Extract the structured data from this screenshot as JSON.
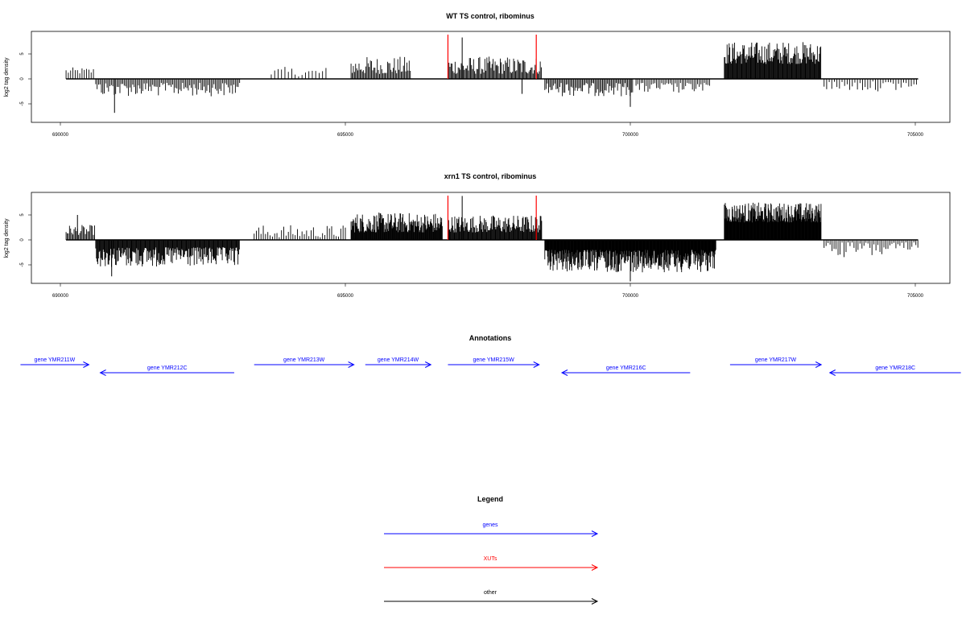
{
  "colors": {
    "gene": "#0000ff",
    "xut": "#ff0000",
    "other": "#000000",
    "bar": "#000000"
  },
  "chart_data": [
    {
      "type": "bar",
      "title": "WT TS control, ribominus",
      "ylabel": "log2 tag density",
      "xlim": [
        689500,
        705500
      ],
      "ylim": [
        -9,
        10
      ],
      "x_ticks": [
        690000,
        695000,
        700000,
        705000
      ],
      "x_tick_labels": [
        "690000",
        "695000",
        "700000",
        "705000"
      ],
      "y_ticks": [
        -5,
        0,
        5
      ],
      "y_tick_labels": [
        "-5",
        "0",
        "5"
      ],
      "baseline_range": [
        690100,
        705050
      ],
      "markers_x": [
        696800,
        698350
      ],
      "segments": [
        {
          "x0": 690100,
          "x1": 690600,
          "step": 40,
          "sign": 1,
          "amp": [
            1.0,
            2.3
          ]
        },
        {
          "x0": 690620,
          "x1": 693150,
          "step": 25,
          "sign": -1,
          "amp": [
            0.8,
            3.5
          ]
        },
        {
          "x0": 693700,
          "x1": 694700,
          "step": 60,
          "sign": 1,
          "amp": [
            0.5,
            2.4
          ]
        },
        {
          "x0": 695100,
          "x1": 696150,
          "step": 20,
          "sign": 1,
          "amp": [
            1.0,
            4.5
          ]
        },
        {
          "x0": 696800,
          "x1": 698450,
          "step": 18,
          "sign": 1,
          "amp": [
            1.0,
            4.5
          ]
        },
        {
          "x0": 698500,
          "x1": 700050,
          "step": 22,
          "sign": -1,
          "amp": [
            0.8,
            3.5
          ]
        },
        {
          "x0": 700100,
          "x1": 701400,
          "step": 30,
          "sign": -1,
          "amp": [
            0.8,
            3.0
          ]
        },
        {
          "x0": 701650,
          "x1": 703350,
          "step": 12,
          "sign": 1,
          "amp": [
            3.0,
            7.5
          ]
        },
        {
          "x0": 703400,
          "x1": 705050,
          "step": 45,
          "sign": -1,
          "amp": [
            0.5,
            2.5
          ]
        }
      ],
      "spikes": [
        {
          "x": 690950,
          "y": -6.8
        },
        {
          "x": 697050,
          "y": 8.3
        },
        {
          "x": 698100,
          "y": -3.0
        },
        {
          "x": 700000,
          "y": -5.6
        }
      ]
    },
    {
      "type": "bar",
      "title": "xrn1 TS control, ribominus",
      "ylabel": "log2 tag density",
      "xlim": [
        689500,
        705500
      ],
      "ylim": [
        -9,
        10
      ],
      "x_ticks": [
        690000,
        695000,
        700000,
        705000
      ],
      "x_tick_labels": [
        "690000",
        "695000",
        "700000",
        "705000"
      ],
      "y_ticks": [
        -5,
        0,
        5
      ],
      "y_tick_labels": [
        "-5",
        "0",
        "5"
      ],
      "baseline_range": [
        690100,
        705050
      ],
      "markers_x": [
        696800,
        698350
      ],
      "segments": [
        {
          "x0": 690100,
          "x1": 690600,
          "step": 20,
          "sign": 1,
          "amp": [
            1.0,
            3.0
          ]
        },
        {
          "x0": 690620,
          "x1": 693150,
          "step": 12,
          "sign": -1,
          "amp": [
            1.5,
            5.5
          ]
        },
        {
          "x0": 693400,
          "x1": 695000,
          "step": 40,
          "sign": 1,
          "amp": [
            0.5,
            3.0
          ]
        },
        {
          "x0": 695100,
          "x1": 696700,
          "step": 10,
          "sign": 1,
          "amp": [
            1.5,
            5.5
          ]
        },
        {
          "x0": 696800,
          "x1": 698450,
          "step": 12,
          "sign": 1,
          "amp": [
            1.5,
            5.0
          ]
        },
        {
          "x0": 698500,
          "x1": 701500,
          "step": 8,
          "sign": -1,
          "amp": [
            2.0,
            6.5
          ]
        },
        {
          "x0": 701650,
          "x1": 703350,
          "step": 8,
          "sign": 1,
          "amp": [
            3.5,
            7.5
          ]
        },
        {
          "x0": 703400,
          "x1": 705050,
          "step": 35,
          "sign": -1,
          "amp": [
            0.5,
            3.5
          ]
        }
      ],
      "spikes": [
        {
          "x": 690300,
          "y": 5.0
        },
        {
          "x": 690900,
          "y": -7.3
        },
        {
          "x": 697050,
          "y": 8.8
        },
        {
          "x": 700000,
          "y": -8.3
        }
      ]
    },
    {
      "type": "annotation-track",
      "title": "Annotations",
      "genes": [
        {
          "label": "gene YMR211W",
          "x0": 689300,
          "x1": 690500,
          "strand": "+"
        },
        {
          "label": "gene YMR212C",
          "x0": 690700,
          "x1": 693050,
          "strand": "-"
        },
        {
          "label": "gene YMR213W",
          "x0": 693400,
          "x1": 695150,
          "strand": "+"
        },
        {
          "label": "gene YMR214W",
          "x0": 695350,
          "x1": 696500,
          "strand": "+"
        },
        {
          "label": "gene YMR215W",
          "x0": 696800,
          "x1": 698400,
          "strand": "+"
        },
        {
          "label": "gene YMR216C",
          "x0": 698800,
          "x1": 701050,
          "strand": "-"
        },
        {
          "label": "gene YMR217W",
          "x0": 701750,
          "x1": 703350,
          "strand": "+"
        },
        {
          "label": "gene YMR218C",
          "x0": 703500,
          "x1": 705800,
          "strand": "-"
        }
      ]
    }
  ],
  "legend": {
    "title": "Legend",
    "items": [
      {
        "label": "genes",
        "kind": "gene"
      },
      {
        "label": "XUTs",
        "kind": "xut"
      },
      {
        "label": "other",
        "kind": "other"
      }
    ]
  }
}
